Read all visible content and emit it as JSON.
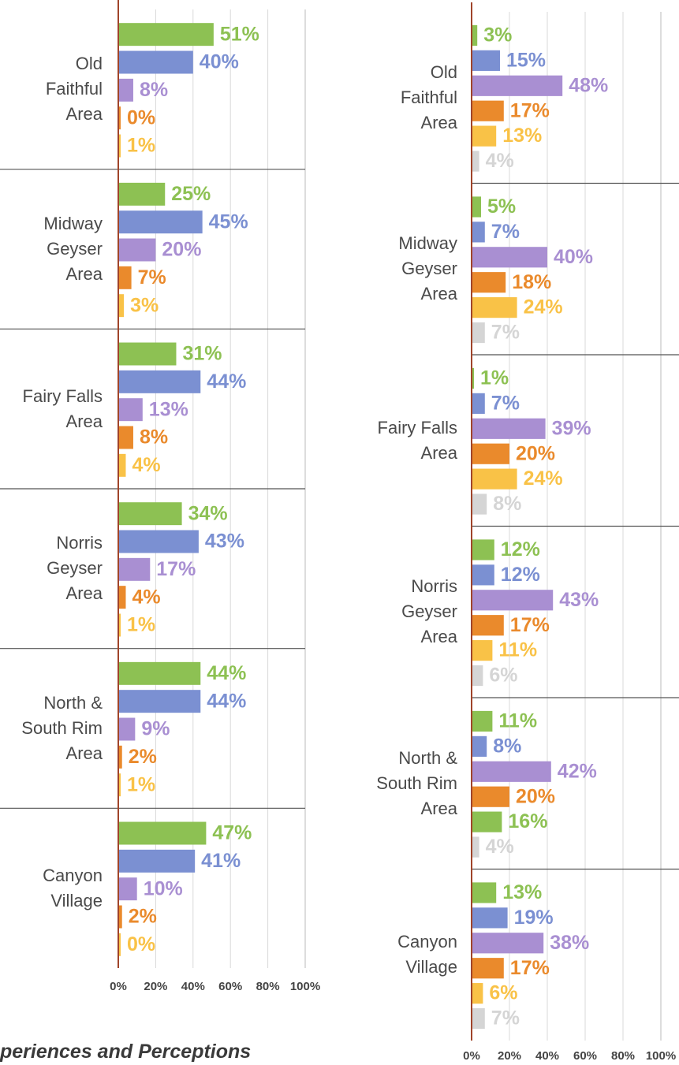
{
  "chart_data": [
    {
      "type": "bar",
      "orientation": "horizontal",
      "categories": [
        "Old\nFaithful\nArea",
        "Midway\nGeyser\nArea",
        "Fairy Falls\nArea",
        "Norris\nGeyser\nArea",
        "North &\nSouth Rim\nArea",
        "Canyon\nVillage"
      ],
      "series": [
        {
          "color": "#8dc153",
          "values": [
            51,
            25,
            31,
            34,
            44,
            47
          ],
          "value_labels": [
            "51%",
            "25%",
            "31%",
            "34%",
            "44%",
            "47%"
          ]
        },
        {
          "color": "#7b90d2",
          "values": [
            40,
            45,
            44,
            43,
            44,
            41
          ],
          "value_labels": [
            "40%",
            "45%",
            "44%",
            "43%",
            "44%",
            "41%"
          ]
        },
        {
          "color": "#a98fd2",
          "values": [
            8,
            20,
            13,
            17,
            9,
            10
          ],
          "value_labels": [
            "8%",
            "20%",
            "13%",
            "17%",
            "9%",
            "10%"
          ]
        },
        {
          "color": "#ea8a2c",
          "values": [
            0,
            7,
            8,
            4,
            2,
            2
          ],
          "value_labels": [
            "0%",
            "7%",
            "8%",
            "4%",
            "2%",
            "2%"
          ]
        },
        {
          "color": "#f9c247",
          "values": [
            1,
            3,
            4,
            1,
            1,
            0
          ],
          "value_labels": [
            "1%",
            "3%",
            "4%",
            "1%",
            "1%",
            "0%"
          ]
        }
      ],
      "xlim": [
        0,
        100
      ],
      "xticks": [
        {
          "value": 0,
          "label": "0%"
        },
        {
          "value": 20,
          "label": "20%"
        },
        {
          "value": 40,
          "label": "40%"
        },
        {
          "value": 60,
          "label": "60%"
        },
        {
          "value": 80,
          "label": "80%"
        },
        {
          "value": 100,
          "label": "100%"
        }
      ],
      "grid": true
    },
    {
      "type": "bar",
      "orientation": "horizontal",
      "categories": [
        "Old\nFaithful\nArea",
        "Midway\nGeyser\nArea",
        "Fairy Falls\nArea",
        "Norris\nGeyser\nArea",
        "North &\nSouth Rim\nArea",
        "Canyon\nVillage"
      ],
      "series": [
        {
          "color": "#8dc153",
          "values": [
            3,
            5,
            1,
            12,
            11,
            13
          ],
          "value_labels": [
            "3%",
            "5%",
            "1%",
            "12%",
            "11%",
            "13%"
          ]
        },
        {
          "color": "#7b90d2",
          "values": [
            15,
            7,
            7,
            12,
            8,
            19
          ],
          "value_labels": [
            "15%",
            "7%",
            "7%",
            "12%",
            "8%",
            "19%"
          ]
        },
        {
          "color": "#a98fd2",
          "values": [
            48,
            40,
            39,
            43,
            42,
            38
          ],
          "value_labels": [
            "48%",
            "40%",
            "39%",
            "43%",
            "42%",
            "38%"
          ]
        },
        {
          "color": "#ea8a2c",
          "values": [
            17,
            18,
            20,
            17,
            20,
            17
          ],
          "value_labels": [
            "17%",
            "18%",
            "20%",
            "17%",
            "20%",
            "17%"
          ]
        },
        {
          "color": "#f9c247",
          "colors": [
            "#f9c247",
            "#f9c247",
            "#f9c247",
            "#f9c247",
            "#8dc153",
            "#f9c247"
          ],
          "values": [
            13,
            24,
            24,
            11,
            16,
            6
          ],
          "value_labels": [
            "13%",
            "24%",
            "24%",
            "11%",
            "16%",
            "6%"
          ]
        },
        {
          "color": "#d5d5d5",
          "values": [
            4,
            7,
            8,
            6,
            4,
            7
          ],
          "value_labels": [
            "4%",
            "7%",
            "8%",
            "6%",
            "4%",
            "7%"
          ]
        }
      ],
      "xlim": [
        0,
        100
      ],
      "xticks": [
        {
          "value": 0,
          "label": "0%"
        },
        {
          "value": 20,
          "label": "20%"
        },
        {
          "value": 40,
          "label": "40%"
        },
        {
          "value": 60,
          "label": "60%"
        },
        {
          "value": 80,
          "label": "80%"
        },
        {
          "value": 100,
          "label": "100%"
        }
      ],
      "grid": true
    }
  ],
  "caption": "periences and Perceptions"
}
